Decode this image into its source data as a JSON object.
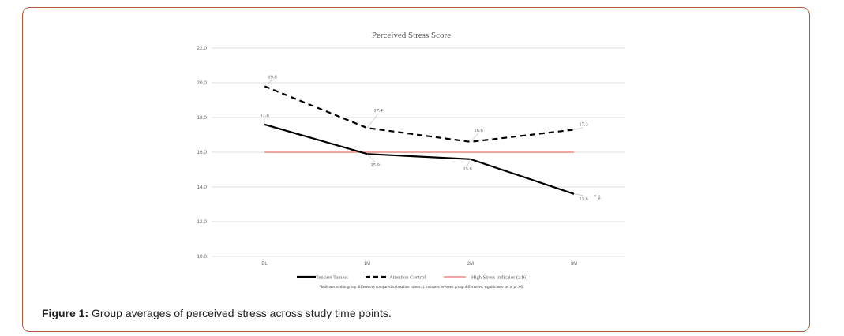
{
  "caption": {
    "label": "Figure 1:",
    "text": "Group averages of perceived stress across study time points."
  },
  "chart_data": {
    "type": "line",
    "title": "Perceived Stress Score",
    "categories": [
      "BL",
      "1M",
      "2M",
      "3M"
    ],
    "ylim": [
      10.0,
      22.0
    ],
    "yticks": [
      "10.0",
      "12.0",
      "14.0",
      "16.0",
      "18.0",
      "20.0",
      "22.0"
    ],
    "grid": true,
    "series": [
      {
        "name": "Tension Tamers",
        "style": "solid",
        "color": "#000000",
        "values": [
          17.6,
          15.9,
          15.6,
          13.6
        ],
        "labels": [
          "17.6",
          "15.9",
          "15.6",
          "13.6"
        ]
      },
      {
        "name": "Attention Control",
        "style": "dashed",
        "color": "#000000",
        "values": [
          19.8,
          17.4,
          16.6,
          17.3
        ],
        "labels": [
          "19.8",
          "17.4",
          "16.6",
          "17.3"
        ]
      },
      {
        "name": "High Stress Indicator (≥16)",
        "style": "solid",
        "color": "#e8716a",
        "values": [
          16.0,
          16.0,
          16.0,
          16.0
        ]
      }
    ],
    "annotation": "* ‡",
    "footnote": "*Indicates within group differences compared to baseline values; ‡ indicates between group differences; significance set at p<.05"
  }
}
